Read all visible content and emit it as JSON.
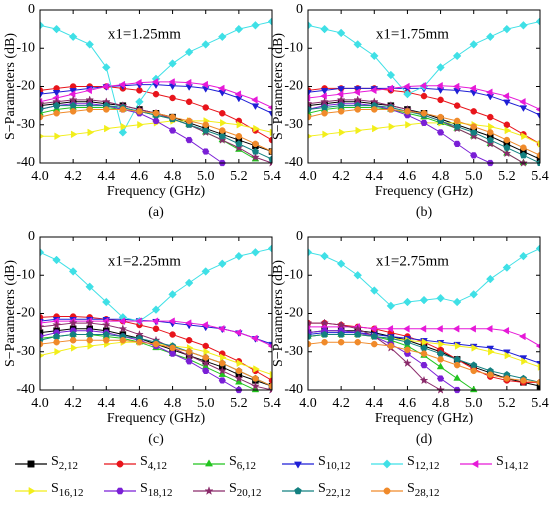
{
  "chart_data": [
    {
      "type": "line",
      "title": "x1=1.25mm",
      "caption": "(a)",
      "xlabel": "Frequency (GHz)",
      "ylabel": "S−Parameters (dB)",
      "xlim": [
        4.0,
        5.4
      ],
      "ylim": [
        -40,
        0
      ],
      "xticks": [
        {
          "value": 4.0,
          "label": "4.0"
        },
        {
          "value": 4.2,
          "label": "4.2"
        },
        {
          "value": 4.4,
          "label": "4.4"
        },
        {
          "value": 4.6,
          "label": "4.6"
        },
        {
          "value": 4.8,
          "label": "4.8"
        },
        {
          "value": 5.0,
          "label": "5.0"
        },
        {
          "value": 5.2,
          "label": "5.2"
        },
        {
          "value": 5.4,
          "label": "5.4"
        }
      ],
      "yticks": [
        0,
        -10,
        -20,
        -30,
        -40
      ],
      "x": [
        4.0,
        4.1,
        4.2,
        4.3,
        4.4,
        4.5,
        4.6,
        4.7,
        4.8,
        4.9,
        5.0,
        5.1,
        5.2,
        5.3,
        5.4
      ],
      "series": [
        {
          "values": [
            -25,
            -24.5,
            -24,
            -24,
            -24.5,
            -25,
            -26,
            -27,
            -28,
            -29.5,
            -31,
            -32.5,
            -34,
            -35.5,
            -37
          ]
        },
        {
          "values": [
            -21,
            -20.5,
            -20,
            -20,
            -20,
            -20.5,
            -21,
            -22,
            -23,
            -24,
            -25.5,
            -27,
            -29,
            -31.5,
            -34
          ]
        },
        {
          "values": [
            -27,
            -26,
            -25.5,
            -25.5,
            -25.5,
            -26,
            -26.5,
            -27.5,
            -28.5,
            -30,
            -32,
            -34,
            -36.5,
            -39,
            null
          ]
        },
        {
          "values": [
            -22,
            -21.5,
            -21,
            -20.5,
            -20,
            -19.8,
            -19.5,
            -19.5,
            -19.8,
            -20,
            -20.5,
            -21.5,
            -23,
            -25,
            -27
          ]
        },
        {
          "values": [
            -4,
            -5,
            -7,
            -9,
            -15,
            -32,
            -24,
            -18,
            -14,
            -11,
            -9,
            -7,
            -5,
            -4,
            -3
          ]
        },
        {
          "values": [
            -24,
            -23,
            -22,
            -21,
            -20,
            -19.5,
            -19,
            -18.8,
            -18.8,
            -19,
            -19.5,
            -20.5,
            -22,
            -23.5,
            -25.5
          ]
        },
        {
          "values": [
            -33,
            -33,
            -32.5,
            -32,
            -31,
            -30.5,
            -30,
            -29.5,
            -29,
            -29,
            -29,
            -29.5,
            -30,
            -31,
            -32
          ]
        },
        {
          "values": [
            -26,
            -25,
            -24.5,
            -24.5,
            -25,
            -26,
            -27,
            -29,
            -31.5,
            -34,
            -37,
            -40,
            null,
            null,
            null
          ]
        },
        {
          "values": [
            -24.5,
            -24,
            -23.5,
            -23.5,
            -24,
            -25,
            -26,
            -27,
            -28.5,
            -30,
            -32,
            -34,
            -36,
            -38.5,
            -40
          ]
        },
        {
          "values": [
            -26,
            -25,
            -25,
            -25,
            -25,
            -25.5,
            -26.5,
            -27.5,
            -28.5,
            -30,
            -31.5,
            -33,
            -35,
            -37,
            -39
          ]
        },
        {
          "values": [
            -28,
            -27,
            -26.5,
            -26,
            -26,
            -26,
            -26.5,
            -27,
            -28,
            -29,
            -30,
            -31.5,
            -33,
            -35,
            -37
          ]
        }
      ]
    },
    {
      "type": "line",
      "title": "x1=1.75mm",
      "caption": "(b)",
      "xlabel": "Frequency (GHz)",
      "ylabel": "S−Parameters (dB)",
      "xlim": [
        4.0,
        5.4
      ],
      "ylim": [
        -40,
        0
      ],
      "xticks": [
        {
          "value": 4.0,
          "label": "4.0"
        },
        {
          "value": 4.2,
          "label": "4.2"
        },
        {
          "value": 4.4,
          "label": "4.4"
        },
        {
          "value": 4.6,
          "label": "4.6"
        },
        {
          "value": 4.8,
          "label": "4.8"
        },
        {
          "value": 5.0,
          "label": "5.0"
        },
        {
          "value": 5.2,
          "label": "5.2"
        },
        {
          "value": 5.4,
          "label": "5.4"
        }
      ],
      "yticks": [
        0,
        -10,
        -20,
        -30,
        -40
      ],
      "x": [
        4.0,
        4.1,
        4.2,
        4.3,
        4.4,
        4.5,
        4.6,
        4.7,
        4.8,
        4.9,
        5.0,
        5.1,
        5.2,
        5.3,
        5.4
      ],
      "series": [
        {
          "values": [
            -25,
            -24.5,
            -24,
            -24,
            -24.5,
            -25,
            -26,
            -27,
            -28.5,
            -30,
            -31.5,
            -33,
            -35,
            -37,
            -39
          ]
        },
        {
          "values": [
            -21,
            -20.5,
            -20.5,
            -20.5,
            -20.5,
            -21,
            -21.5,
            -22.5,
            -23.5,
            -25,
            -26.5,
            -28,
            -30,
            -32.5,
            -35
          ]
        },
        {
          "values": [
            -27,
            -26,
            -25.5,
            -25.5,
            -25.5,
            -26,
            -27,
            -28,
            -29.5,
            -31,
            -33,
            -35,
            -37.5,
            -40,
            null
          ]
        },
        {
          "values": [
            -21.5,
            -21,
            -20.5,
            -20.5,
            -20.5,
            -20.5,
            -20.5,
            -20.5,
            -20.8,
            -21,
            -21.5,
            -22.5,
            -24,
            -25.5,
            -27.5
          ]
        },
        {
          "values": [
            -4,
            -5,
            -6,
            -9,
            -12,
            -17,
            -22,
            -20,
            -15,
            -12,
            -9,
            -7,
            -5,
            -4,
            -3
          ]
        },
        {
          "values": [
            -23,
            -22.5,
            -22,
            -21.5,
            -21,
            -20.5,
            -20,
            -19.8,
            -19.8,
            -20,
            -20.5,
            -21.5,
            -22.5,
            -24,
            -26
          ]
        },
        {
          "values": [
            -33,
            -32.5,
            -32,
            -31.5,
            -31,
            -30.5,
            -30,
            -29.5,
            -29.5,
            -29.5,
            -30,
            -30.5,
            -31.5,
            -33,
            -35
          ]
        },
        {
          "values": [
            -26,
            -25,
            -24.5,
            -24.5,
            -25,
            -26,
            -27.5,
            -29.5,
            -32,
            -35,
            -38,
            -40,
            null,
            null,
            null
          ]
        },
        {
          "values": [
            -24.5,
            -24,
            -23.5,
            -23.5,
            -24,
            -25,
            -26,
            -27.5,
            -29,
            -31,
            -33,
            -35,
            -37.5,
            -40,
            null
          ]
        },
        {
          "values": [
            -26,
            -25.5,
            -25,
            -25,
            -25,
            -25.5,
            -26.5,
            -27.5,
            -29,
            -30.5,
            -32,
            -34,
            -36,
            -38,
            -40
          ]
        },
        {
          "values": [
            -28,
            -27,
            -26.5,
            -26,
            -26,
            -26,
            -26.5,
            -27,
            -28,
            -29,
            -30.5,
            -32,
            -34,
            -36,
            -38
          ]
        }
      ]
    },
    {
      "type": "line",
      "title": "x1=2.25mm",
      "caption": "(c)",
      "xlabel": "Frequency (GHz)",
      "ylabel": "S−Parameters (dB)",
      "xlim": [
        4.0,
        5.4
      ],
      "ylim": [
        -40,
        0
      ],
      "xticks": [
        {
          "value": 4.0,
          "label": "4.0"
        },
        {
          "value": 4.2,
          "label": "4.2"
        },
        {
          "value": 4.4,
          "label": "4.4"
        },
        {
          "value": 4.6,
          "label": "4.6"
        },
        {
          "value": 4.8,
          "label": "4.8"
        },
        {
          "value": 5.0,
          "label": "5.0"
        },
        {
          "value": 5.2,
          "label": "5.2"
        },
        {
          "value": 5.4,
          "label": "5.4"
        }
      ],
      "yticks": [
        0,
        -10,
        -20,
        -30,
        -40
      ],
      "x": [
        4.0,
        4.1,
        4.2,
        4.3,
        4.4,
        4.5,
        4.6,
        4.7,
        4.8,
        4.9,
        5.0,
        5.1,
        5.2,
        5.3,
        5.4
      ],
      "series": [
        {
          "values": [
            -25,
            -24.5,
            -24,
            -24,
            -24.5,
            -25.5,
            -26.5,
            -28,
            -29.5,
            -31,
            -32.5,
            -34,
            -36,
            -37.5,
            -39
          ]
        },
        {
          "values": [
            -21,
            -20.8,
            -20.8,
            -21,
            -21.5,
            -22,
            -23,
            -24,
            -25.5,
            -27,
            -28.5,
            -30.5,
            -32.5,
            -35,
            -37.5
          ]
        },
        {
          "values": [
            -26.5,
            -26,
            -25.5,
            -25.5,
            -26,
            -26.5,
            -27.5,
            -29,
            -30.5,
            -32,
            -34,
            -36,
            -38,
            -40,
            null
          ]
        },
        {
          "values": [
            -22,
            -21.5,
            -21.5,
            -21.5,
            -21.5,
            -21.5,
            -21.8,
            -22,
            -22.5,
            -23,
            -23.5,
            -24,
            -25,
            -26.5,
            -28
          ]
        },
        {
          "values": [
            -4,
            -6,
            -9,
            -13,
            -17,
            -21,
            -22,
            -19,
            -15,
            -12,
            -9,
            -7,
            -5,
            -4,
            -3
          ]
        },
        {
          "values": [
            -22.5,
            -22,
            -22,
            -22,
            -22,
            -22,
            -22,
            -22,
            -22,
            -22.5,
            -23,
            -24,
            -25,
            -26.5,
            -28.5
          ]
        },
        {
          "values": [
            -31,
            -30,
            -29,
            -28.5,
            -28,
            -27.5,
            -27.5,
            -28,
            -28.5,
            -29,
            -30,
            -31.5,
            -33,
            -34.5,
            -36
          ]
        },
        {
          "values": [
            -26,
            -25,
            -24.5,
            -24.5,
            -25,
            -26,
            -27,
            -28.5,
            -30.5,
            -32.5,
            -35,
            -37.5,
            -40,
            null,
            null
          ]
        },
        {
          "values": [
            -23.5,
            -23,
            -22.5,
            -22.5,
            -23,
            -24,
            -25.5,
            -27,
            -29,
            -31,
            -33,
            -35,
            -37,
            -39,
            -40
          ]
        },
        {
          "values": [
            -27,
            -26,
            -25.5,
            -25.5,
            -25.5,
            -26,
            -26.5,
            -27.5,
            -28.5,
            -30,
            -31.5,
            -33,
            -35,
            -37,
            -39
          ]
        },
        {
          "values": [
            -28,
            -27.5,
            -27,
            -27,
            -27,
            -27,
            -27.5,
            -28,
            -29,
            -30,
            -31.5,
            -33,
            -35,
            -37,
            -39
          ]
        }
      ]
    },
    {
      "type": "line",
      "title": "x1=2.75mm",
      "caption": "(d)",
      "xlabel": "Frequency (GHz)",
      "ylabel": "S−Parameters (dB)",
      "xlim": [
        4.0,
        5.4
      ],
      "ylim": [
        -40,
        0
      ],
      "xticks": [
        {
          "value": 4.0,
          "label": "4.0"
        },
        {
          "value": 4.2,
          "label": "4.2"
        },
        {
          "value": 4.4,
          "label": "4.4"
        },
        {
          "value": 4.6,
          "label": "4.6"
        },
        {
          "value": 4.8,
          "label": "4.8"
        },
        {
          "value": 5.0,
          "label": "5.0"
        },
        {
          "value": 5.2,
          "label": "5.2"
        },
        {
          "value": 5.4,
          "label": "5.4"
        }
      ],
      "yticks": [
        0,
        -10,
        -20,
        -30,
        -40
      ],
      "x": [
        4.0,
        4.1,
        4.2,
        4.3,
        4.4,
        4.5,
        4.6,
        4.7,
        4.8,
        4.9,
        5.0,
        5.1,
        5.2,
        5.3,
        5.4
      ],
      "series": [
        {
          "values": [
            -25,
            -24.5,
            -24.5,
            -24.5,
            -25,
            -26,
            -27,
            -28.5,
            -30,
            -32,
            -34,
            -35.5,
            -37,
            -38,
            -39
          ]
        },
        {
          "values": [
            -22.5,
            -22.5,
            -23,
            -23.5,
            -24,
            -25,
            -26,
            -27.5,
            -29.5,
            -32,
            -34.5,
            -36.5,
            -37.5,
            -38,
            -38
          ]
        },
        {
          "values": [
            -26,
            -25.5,
            -25.5,
            -25.5,
            -26,
            -27,
            -28.5,
            -31,
            -34,
            -37,
            -40,
            null,
            null,
            null,
            null
          ]
        },
        {
          "values": [
            -25.5,
            -25,
            -25,
            -25,
            -25.5,
            -26,
            -26.5,
            -27,
            -27.5,
            -28,
            -28.5,
            -29,
            -30,
            -31.5,
            -33
          ]
        },
        {
          "values": [
            -4,
            -5,
            -7,
            -10,
            -14,
            -18,
            -17,
            -16.5,
            -16,
            -17,
            -15,
            -11,
            -8,
            -5,
            -3
          ]
        },
        {
          "values": [
            -23.5,
            -23.5,
            -23.5,
            -23.5,
            -24,
            -24,
            -24,
            -24,
            -24,
            -24,
            -24,
            -24,
            -24.5,
            -26,
            -28.5
          ]
        },
        {
          "values": [
            -26,
            -25.5,
            -25.5,
            -25.5,
            -26,
            -26.5,
            -27,
            -27.5,
            -28,
            -28.5,
            -29,
            -30,
            -31,
            -32.5,
            -34
          ]
        },
        {
          "values": [
            -25,
            -24.5,
            -24.5,
            -25,
            -26,
            -28,
            -30.5,
            -33.5,
            -37,
            -40,
            null,
            null,
            null,
            null,
            null
          ]
        },
        {
          "values": [
            -22.5,
            -22.5,
            -23,
            -24,
            -26,
            -29,
            -33,
            -37.5,
            -40,
            null,
            null,
            null,
            null,
            null,
            null
          ]
        },
        {
          "values": [
            -26,
            -25.5,
            -25.5,
            -25.5,
            -26,
            -26.5,
            -27.5,
            -29,
            -30.5,
            -32,
            -33.5,
            -35,
            -36,
            -37,
            -38
          ]
        },
        {
          "values": [
            -28,
            -27.5,
            -27.5,
            -27.5,
            -28,
            -28.5,
            -29.5,
            -30.5,
            -32,
            -33.5,
            -35,
            -36,
            -37,
            -37.5,
            -38
          ]
        }
      ]
    }
  ],
  "legend": [
    {
      "name": "S2,12",
      "color": "#000000",
      "marker": "square"
    },
    {
      "name": "S4,12",
      "color": "#e8141b",
      "marker": "circle"
    },
    {
      "name": "S6,12",
      "color": "#22c41f",
      "marker": "triangle-up"
    },
    {
      "name": "S10,12",
      "color": "#1f1fd6",
      "marker": "triangle-down"
    },
    {
      "name": "S12,12",
      "color": "#3fe0e6",
      "marker": "diamond"
    },
    {
      "name": "S14,12",
      "color": "#e619d8",
      "marker": "triangle-left"
    },
    {
      "name": "S16,12",
      "color": "#f2ee1a",
      "marker": "triangle-right"
    },
    {
      "name": "S18,12",
      "color": "#7a1fd6",
      "marker": "hexagon"
    },
    {
      "name": "S20,12",
      "color": "#8a2a6a",
      "marker": "star"
    },
    {
      "name": "S22,12",
      "color": "#138080",
      "marker": "pentagon"
    },
    {
      "name": "S28,12",
      "color": "#f08a2a",
      "marker": "circle"
    }
  ]
}
